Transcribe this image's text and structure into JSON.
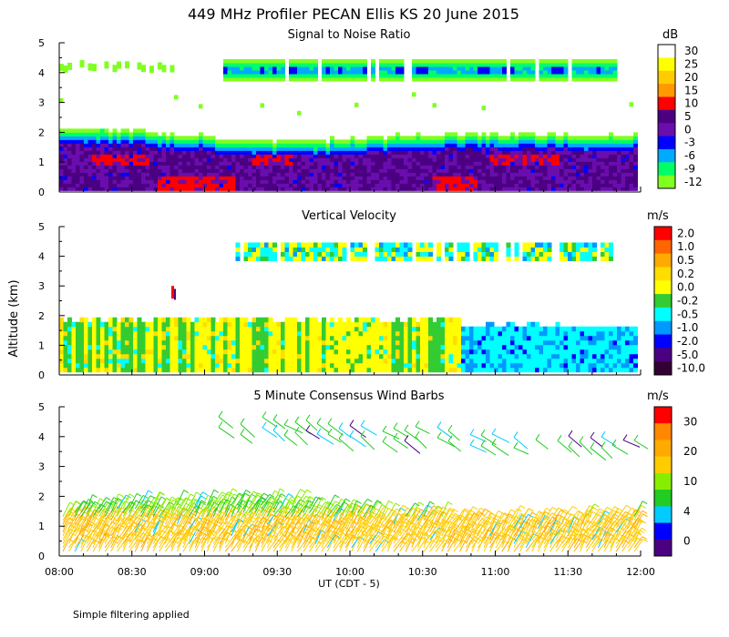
{
  "chart_data": {
    "type": "heatmap",
    "title": "449 MHz Profiler PECAN Ellis KS 20 June 2015",
    "shared_ylabel": "Altitude (km)",
    "shared_xlabel": "UT  (CDT - 5)",
    "x_ticks": [
      "08:00",
      "08:30",
      "09:00",
      "09:30",
      "10:00",
      "10:30",
      "11:00",
      "11:30",
      "12:00"
    ],
    "x_range": [
      "08:00",
      "12:00"
    ],
    "y_ticks": [
      "0",
      "1",
      "2",
      "3",
      "4",
      "5"
    ],
    "y_range": [
      0,
      5
    ],
    "footnote": "Simple filtering applied",
    "panels": [
      {
        "name": "snr",
        "title": "Signal to Noise Ratio",
        "units": "dB",
        "colorbar": {
          "labels": [
            "30",
            "25",
            "20",
            "15",
            "10",
            "5",
            "0",
            "-3",
            "-6",
            "-9",
            "-12"
          ],
          "colors": [
            "#ffffff",
            "#ffff00",
            "#ffcc00",
            "#ff9900",
            "#ff0000",
            "#4b0082",
            "#6a0dad",
            "#0000ff",
            "#00aaff",
            "#00ff66",
            "#80ff20"
          ]
        },
        "features": [
          {
            "label": "low-level layer",
            "altitude_km": [
              0,
              1.9
            ],
            "dominant": "purple, red cores near 1 km and 0.3 km"
          },
          {
            "label": "upper layer",
            "altitude_km": [
              3.6,
              4.4
            ],
            "dominant": "green to cyan"
          }
        ]
      },
      {
        "name": "vertical-velocity",
        "title": "Vertical Velocity",
        "units": "m/s",
        "colorbar": {
          "labels": [
            "2.0",
            "1.0",
            "0.5",
            "0.2",
            "0.0",
            "-0.2",
            "-0.5",
            "-1.0",
            "-2.0",
            "-5.0",
            "-10.0"
          ],
          "colors": [
            "#ff0000",
            "#ff6600",
            "#ffaa00",
            "#ffdd00",
            "#ffff00",
            "#33cc33",
            "#00ffff",
            "#0099ff",
            "#0000ff",
            "#4b0082",
            "#330033"
          ]
        },
        "features": [
          {
            "label": "boundary layer 08:00-10:40",
            "altitude_km": [
              0,
              1.9
            ],
            "dominant": "yellow and green"
          },
          {
            "label": "boundary layer 10:40-12:00",
            "altitude_km": [
              0,
              1.6
            ],
            "dominant": "cyan and blue"
          },
          {
            "label": "upper layer",
            "altitude_km": [
              3.8,
              4.4
            ],
            "dominant": "cyan and yellow"
          }
        ]
      },
      {
        "name": "wind-barbs",
        "title": "5 Minute Consensus Wind Barbs",
        "units": "m/s",
        "colorbar": {
          "labels": [
            "30",
            "20",
            "10",
            "4",
            "0"
          ],
          "colors": [
            "#ff0000",
            "#ff8800",
            "#ffaa00",
            "#ffcc00",
            "#88ee00",
            "#22cc22",
            "#00ccff",
            "#0000ff",
            "#4b0082"
          ]
        },
        "features": [
          {
            "label": "low-level barbs",
            "altitude_km": [
              0,
              1.9
            ],
            "dominant": "orange, yellow-green"
          },
          {
            "label": "upper barbs 09:05-12:00",
            "altitude_km": [
              3.6,
              4.9
            ],
            "dominant": "green"
          }
        ]
      }
    ]
  }
}
